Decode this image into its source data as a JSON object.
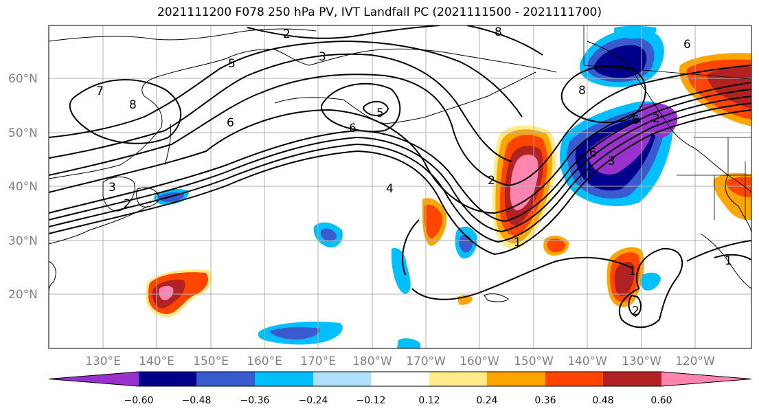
{
  "title": "2021111200 F078 250 hPa PV, IVT Landfall PC (2021111500 - 2021111700)",
  "map": {
    "projection": "cylindrical",
    "lon_ticks": [
      "130°E",
      "140°E",
      "150°E",
      "160°E",
      "170°E",
      "180°W",
      "170°W",
      "160°W",
      "150°W",
      "140°W",
      "130°W",
      "120°W"
    ],
    "lat_ticks": [
      "60°N",
      "50°N",
      "40°N",
      "30°N",
      "20°N"
    ],
    "grid": true,
    "land_outline_color": "#000000",
    "grid_color": "#b0b0b0"
  },
  "contour_labels": [
    "2",
    "5",
    "3",
    "7",
    "8",
    "8",
    "6",
    "5",
    "6",
    "4",
    "3",
    "2",
    "8",
    "6",
    "3",
    "6",
    "1",
    "2",
    "1",
    "1",
    "2",
    "2",
    "6"
  ],
  "colorbar": {
    "ticks": [
      "−0.60",
      "−0.48",
      "−0.36",
      "−0.24",
      "−0.12",
      "0.12",
      "0.24",
      "0.36",
      "0.48",
      "0.60"
    ],
    "colors": [
      "#9932cc",
      "#00008b",
      "#3a5bd0",
      "#00bfff",
      "#b0e0ff",
      "#ffffff",
      "#ffeb8a",
      "#ffa500",
      "#ff4500",
      "#b22222",
      "#ff85b0"
    ],
    "extend": "both"
  }
}
